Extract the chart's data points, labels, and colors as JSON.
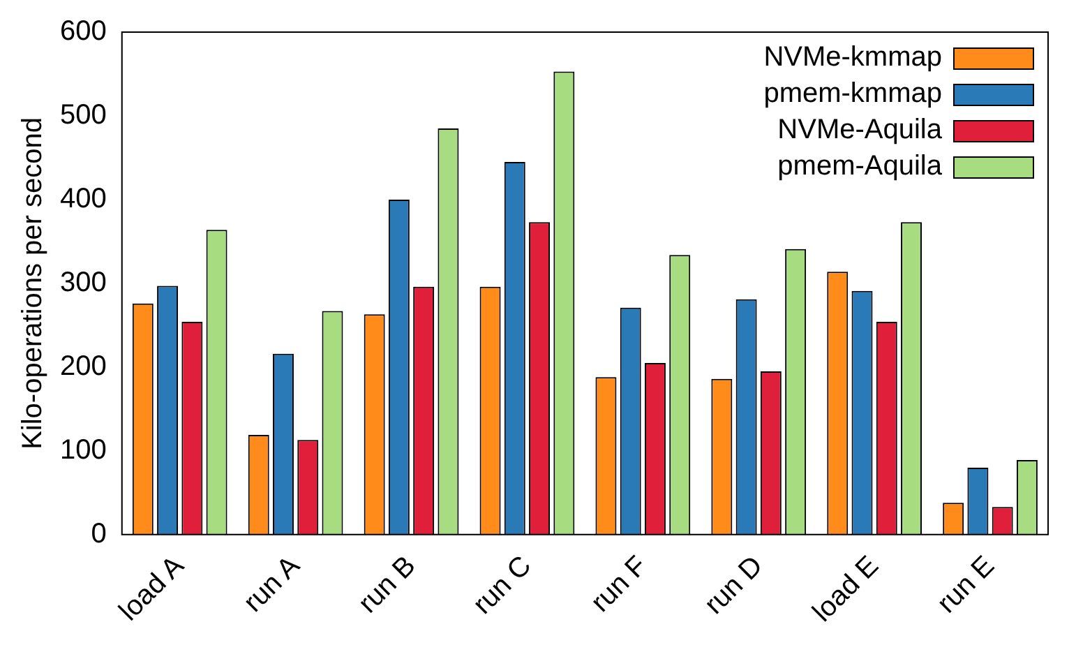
{
  "chart_data": {
    "type": "bar",
    "ylabel": "Kilo-operations per second",
    "categories": [
      "load A",
      "run A",
      "run B",
      "run C",
      "run F",
      "run D",
      "load E",
      "run E"
    ],
    "series": [
      {
        "name": "NVMe-kmmap",
        "color": "#ff8c1a",
        "values": [
          276,
          119,
          263,
          296,
          188,
          186,
          314,
          38
        ]
      },
      {
        "name": "pmem-kmmap",
        "color": "#2a7ab8",
        "values": [
          297,
          216,
          400,
          445,
          271,
          281,
          291,
          80
        ]
      },
      {
        "name": "NVMe-Aquila",
        "color": "#e0203a",
        "values": [
          254,
          113,
          296,
          373,
          205,
          195,
          254,
          33
        ]
      },
      {
        "name": "pmem-Aquila",
        "color": "#a8dc80",
        "values": [
          364,
          267,
          485,
          553,
          334,
          341,
          373,
          89
        ]
      }
    ],
    "ylim": [
      0,
      600
    ],
    "yticks": [
      0,
      100,
      200,
      300,
      400,
      500,
      600
    ],
    "grid": false,
    "legend": "top right"
  }
}
